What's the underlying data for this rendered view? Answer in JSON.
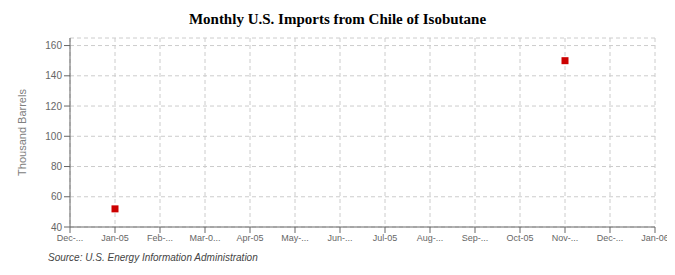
{
  "chart_data": {
    "type": "scatter",
    "title": "Monthly U.S. Imports from Chile of Isobutane",
    "y_label": "Thousand Barrels",
    "annotations": [
      "Source: U.S. Energy Information Administration"
    ],
    "categories": [
      "Dec-...",
      "Jan-05",
      "Feb-...",
      "Mar-0...",
      "Apr-05",
      "May-...",
      "Jun-...",
      "Jul-05",
      "Aug-...",
      "Sep-...",
      "Oct-05",
      "Nov-...",
      "Dec-...",
      "Jan-06"
    ],
    "values": [
      null,
      52,
      null,
      null,
      null,
      null,
      null,
      null,
      null,
      null,
      null,
      150,
      null,
      null
    ],
    "color": "#cc0000",
    "marker": "square",
    "ylim": [
      40,
      165
    ],
    "yticks": [
      40,
      60,
      80,
      100,
      120,
      140,
      160
    ],
    "grid": true
  }
}
